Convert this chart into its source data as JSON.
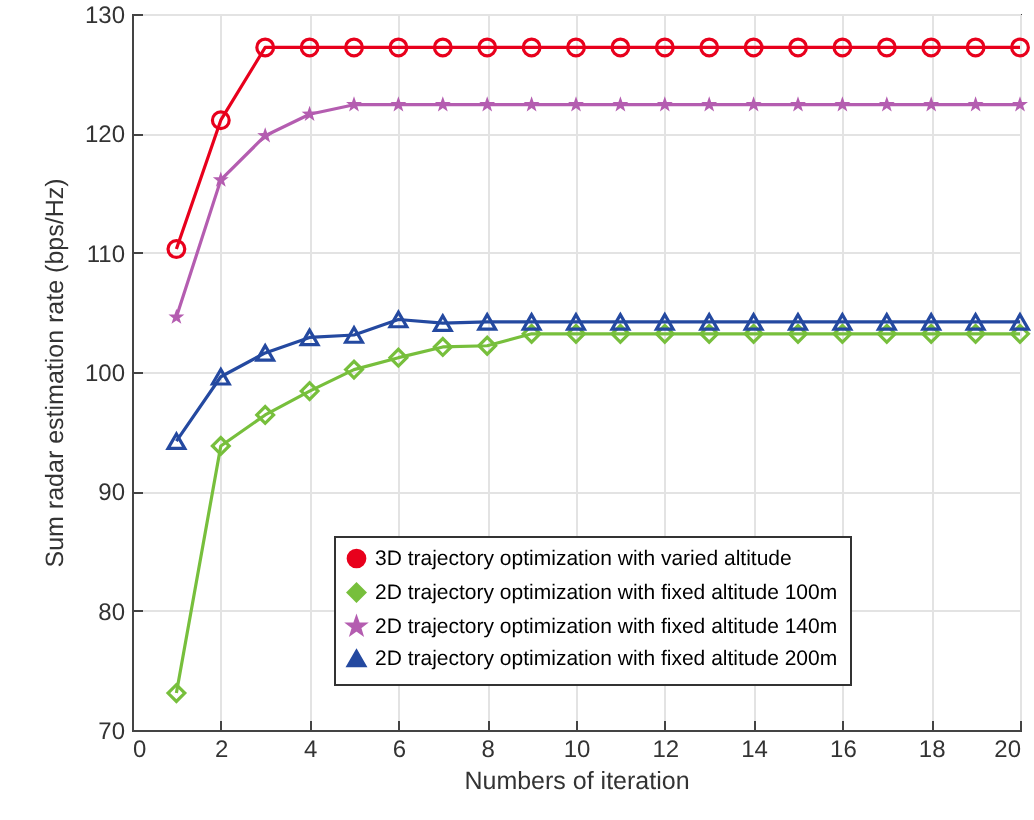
{
  "chart_data": {
    "type": "line",
    "xlabel": "Numbers of iteration",
    "ylabel": "Sum radar estimation rate (bps/Hz)",
    "x": [
      1,
      2,
      3,
      4,
      5,
      6,
      7,
      8,
      9,
      10,
      11,
      12,
      13,
      14,
      15,
      16,
      17,
      18,
      19,
      20
    ],
    "xlim": [
      0,
      20
    ],
    "xticks": [
      0,
      2,
      4,
      6,
      8,
      10,
      12,
      14,
      16,
      18,
      20
    ],
    "ylim": [
      70,
      130
    ],
    "yticks": [
      70,
      80,
      90,
      100,
      110,
      120,
      130
    ],
    "grid": true,
    "legend": "bottom right",
    "line_style": "solid",
    "series": [
      {
        "name": "3D trajectory optimization with varied altitude",
        "color": "#e8001c",
        "marker": "circle",
        "values": [
          110.3,
          121.1,
          127.2,
          127.2,
          127.2,
          127.2,
          127.2,
          127.2,
          127.2,
          127.2,
          127.2,
          127.2,
          127.2,
          127.2,
          127.2,
          127.2,
          127.2,
          127.2,
          127.2,
          127.2
        ]
      },
      {
        "name": "2D trajectory optimization with fixed altitude 100m",
        "color": "#77bf3c",
        "marker": "diamond",
        "values": [
          73.1,
          93.8,
          96.4,
          98.4,
          100.2,
          101.2,
          102.1,
          102.2,
          103.2,
          103.2,
          103.2,
          103.2,
          103.2,
          103.2,
          103.2,
          103.2,
          103.2,
          103.2,
          103.2,
          103.2
        ]
      },
      {
        "name": "2D trajectory optimization with fixed altitude 140m",
        "color": "#b45db0",
        "marker": "star",
        "values": [
          104.6,
          116.1,
          119.8,
          121.6,
          122.4,
          122.4,
          122.4,
          122.4,
          122.4,
          122.4,
          122.4,
          122.4,
          122.4,
          122.4,
          122.4,
          122.4,
          122.4,
          122.4,
          122.4,
          122.4
        ]
      },
      {
        "name": "2D trajectory optimization with fixed altitude 200m",
        "color": "#2449a0",
        "marker": "triangle",
        "values": [
          94.2,
          99.6,
          101.6,
          102.9,
          103.1,
          104.4,
          104.1,
          104.2,
          104.2,
          104.2,
          104.2,
          104.2,
          104.2,
          104.2,
          104.2,
          104.2,
          104.2,
          104.2,
          104.2,
          104.2
        ]
      }
    ]
  }
}
